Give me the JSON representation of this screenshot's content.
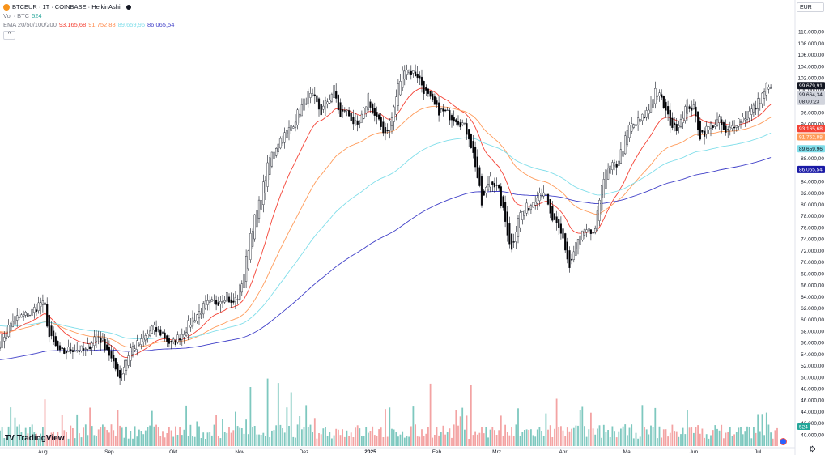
{
  "symbol": {
    "title": "BTCEUR · 1T · COINBASE · HeikinAshi",
    "volume_label": "Vol · BTC",
    "volume_value": "524",
    "ema_label": "EMA 20/50/100/200",
    "ema_values": [
      "93.165,68",
      "91.752,88",
      "89.659,96",
      "86.065,54"
    ]
  },
  "currency_button": "EUR",
  "brand": {
    "name": "TradingView",
    "logo": "TV"
  },
  "icons": {
    "settings": "gear-icon",
    "collapse": "chevron-up-icon",
    "symbol": "bitcoin-icon"
  },
  "colors": {
    "up": "#26a69a",
    "down": "#000000",
    "wick": "#131722",
    "vol_up": "#7ec8bf",
    "vol_down": "#f3a3a3",
    "ema20": "#f44336",
    "ema50": "#ff9b5a",
    "ema100": "#80deea",
    "ema200": "#3f3fc8"
  },
  "chart_data": {
    "type": "candlestick",
    "chart_style": "Heikin Ashi",
    "interval": "1 day",
    "y_scale": "linear",
    "ylim": [
      39000,
      112000
    ],
    "y_ticks": [
      110000,
      108000,
      106000,
      104000,
      102000,
      100000,
      98000,
      96000,
      94000,
      92000,
      90000,
      88000,
      86000,
      84000,
      82000,
      80000,
      78000,
      76000,
      74000,
      72000,
      70000,
      68000,
      66000,
      64000,
      62000,
      60000,
      58000,
      56000,
      54000,
      52000,
      50000,
      48000,
      46000,
      44000,
      42000,
      40000
    ],
    "y_tick_labels": [
      "110.000,00",
      "108.000,00",
      "106.000,00",
      "104.000,00",
      "102.000,00",
      "100.000,00",
      "98.000,00",
      "96.000,00",
      "94.000,00",
      "92.000,00",
      "90.000,00",
      "88.000,00",
      "86.000,00",
      "84.000,00",
      "82.000,00",
      "80.000,00",
      "78.000,00",
      "76.000,00",
      "74.000,00",
      "72.000,00",
      "70.000,00",
      "68.000,00",
      "66.000,00",
      "64.000,00",
      "62.000,00",
      "60.000,00",
      "58.000,00",
      "56.000,00",
      "54.000,00",
      "52.000,00",
      "50.000,00",
      "48.000,00",
      "46.000,00",
      "44.000,00",
      "42.000,00",
      "40.000,00"
    ],
    "x_labels": [
      "Aug",
      "Sep",
      "Okt",
      "Nov",
      "Dez",
      "2025",
      "Feb",
      "Mrz",
      "Apr",
      "Mai",
      "Jun",
      "Jul"
    ],
    "x_label_days": [
      20,
      51,
      81,
      112,
      142,
      173,
      204,
      232,
      263,
      293,
      324,
      354
    ],
    "total_days": 363,
    "anchors_days": [
      0,
      6,
      14,
      19,
      21,
      23,
      28,
      34,
      40,
      45,
      50,
      53,
      56,
      61,
      66,
      71,
      76,
      80,
      86,
      91,
      96,
      101,
      106,
      108,
      111,
      114,
      117,
      121,
      126,
      130,
      133,
      135,
      138,
      141,
      144,
      147,
      150,
      153,
      156,
      159,
      161,
      164,
      167,
      170,
      172,
      174,
      177,
      180,
      183,
      186,
      189,
      192,
      195,
      198,
      201,
      204,
      207,
      210,
      213,
      216,
      219,
      222,
      225,
      229,
      231,
      233,
      236,
      239,
      242,
      245,
      248,
      251,
      254,
      257,
      260,
      263,
      266,
      269,
      272,
      275,
      278,
      281,
      284,
      288,
      291,
      294,
      297,
      300,
      303,
      306,
      309,
      312,
      315,
      318,
      321,
      324,
      327,
      330,
      333,
      336,
      339,
      341,
      344,
      347,
      350,
      353,
      356,
      358,
      360,
      362
    ],
    "anchors_close": [
      56000,
      60000,
      61000,
      63000,
      62000,
      57000,
      54000,
      55000,
      54500,
      57500,
      55000,
      52000,
      50000,
      55000,
      56000,
      58500,
      57500,
      55500,
      58000,
      60500,
      62500,
      63000,
      64500,
      62500,
      64000,
      68000,
      75000,
      80000,
      88000,
      91000,
      92000,
      93000,
      95000,
      97000,
      99000,
      98000,
      96000,
      98000,
      100000,
      95000,
      96500,
      95000,
      93000,
      96000,
      99000,
      96000,
      94000,
      92500,
      95000,
      100500,
      104000,
      103000,
      102500,
      100000,
      98000,
      96500,
      96000,
      95500,
      95000,
      94000,
      92000,
      87000,
      80000,
      85000,
      83500,
      82000,
      77000,
      72000,
      78000,
      79000,
      80000,
      82000,
      82500,
      78000,
      76000,
      74000,
      69000,
      73000,
      75000,
      75000,
      75000,
      84000,
      86000,
      87000,
      90000,
      93500,
      94000,
      95000,
      96500,
      100000,
      98000,
      95000,
      93000,
      95000,
      97500,
      96500,
      92000,
      93000,
      94000,
      94500,
      92000,
      93000,
      94500,
      95000,
      96000,
      97000,
      99000,
      100500,
      99679
    ],
    "last_price": "99.679,91",
    "prev_close": "99.664,34",
    "countdown": "08:00:23",
    "ema20_last": "93.165,68",
    "ema50_last": "91.752,88",
    "ema100_last": "89.659,96",
    "ema200_last": "86.065,54",
    "volume_last": "524",
    "vol_axis_max": 1500,
    "vol_spikes_days": [
      21,
      117,
      125,
      130,
      136,
      201,
      220,
      260
    ],
    "grid": false,
    "legend_position": "top-left"
  }
}
